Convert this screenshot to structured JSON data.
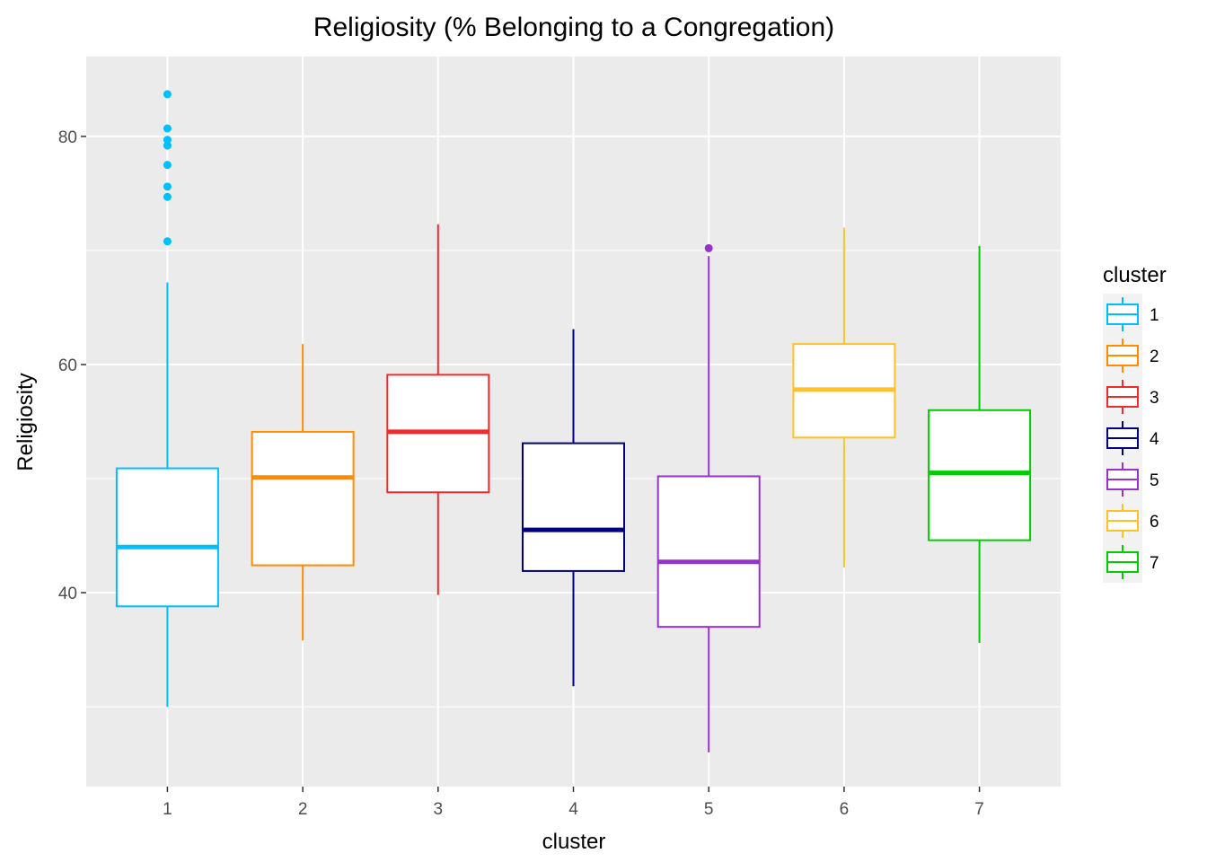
{
  "chart_data": {
    "type": "boxplot",
    "title": "Religiosity (% Belonging to a Congregation)",
    "xlabel": "cluster",
    "ylabel": "Religiosity",
    "ylim": [
      23,
      87
    ],
    "yticks": [
      40,
      60,
      80
    ],
    "grid": true,
    "legend_title": "cluster",
    "legend_position": "right",
    "categories": [
      "1",
      "2",
      "3",
      "4",
      "5",
      "6",
      "7"
    ],
    "series": [
      {
        "name": "1",
        "color": "#00BFFF",
        "whisker_low": 30.0,
        "q1": 38.8,
        "median": 44.0,
        "q3": 50.9,
        "whisker_high": 67.2,
        "outliers": [
          70.8,
          74.7,
          75.6,
          77.5,
          79.2,
          79.7,
          80.7,
          83.7
        ]
      },
      {
        "name": "2",
        "color": "#FF8C00",
        "whisker_low": 35.8,
        "q1": 42.4,
        "median": 50.1,
        "q3": 54.1,
        "whisker_high": 61.8,
        "outliers": []
      },
      {
        "name": "3",
        "color": "#EE2C2C",
        "whisker_low": 39.8,
        "q1": 48.8,
        "median": 54.1,
        "q3": 59.1,
        "whisker_high": 72.3,
        "outliers": []
      },
      {
        "name": "4",
        "color": "#000080",
        "whisker_low": 31.8,
        "q1": 41.9,
        "median": 45.5,
        "q3": 53.1,
        "whisker_high": 63.1,
        "outliers": []
      },
      {
        "name": "5",
        "color": "#9932CC",
        "whisker_low": 26.0,
        "q1": 37.0,
        "median": 42.7,
        "q3": 50.2,
        "whisker_high": 69.5,
        "outliers": [
          70.2
        ]
      },
      {
        "name": "6",
        "color": "#FFC125",
        "whisker_low": 42.2,
        "q1": 53.6,
        "median": 57.8,
        "q3": 61.8,
        "whisker_high": 72.0,
        "outliers": []
      },
      {
        "name": "7",
        "color": "#00CD00",
        "whisker_low": 35.6,
        "q1": 44.6,
        "median": 50.5,
        "q3": 56.0,
        "whisker_high": 70.4,
        "outliers": []
      }
    ]
  }
}
